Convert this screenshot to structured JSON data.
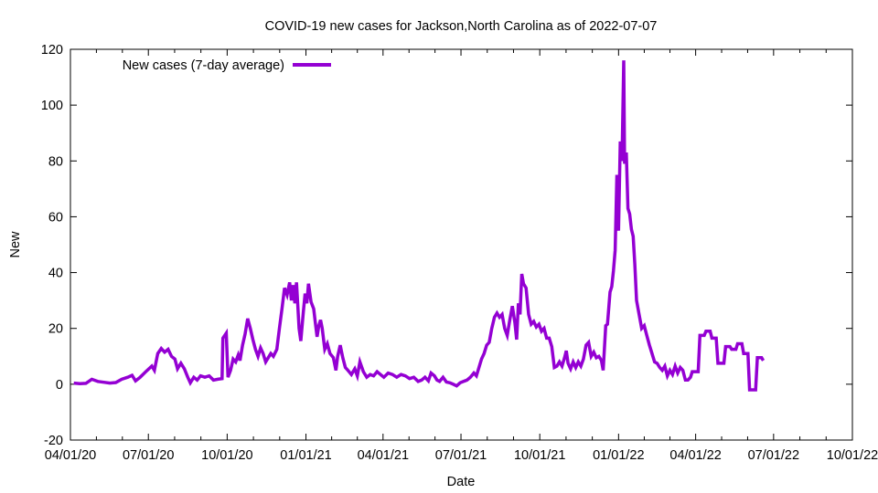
{
  "chart_data": {
    "type": "line",
    "title": "COVID-19 new cases for Jackson,North Carolina as of 2022-07-07",
    "xlabel": "Date",
    "ylabel": "New",
    "xlim": [
      "2020-04-01",
      "2022-10-01"
    ],
    "ylim": [
      -20,
      120
    ],
    "x_ticks": [
      {
        "date": "2020-04-01",
        "label": "04/01/20"
      },
      {
        "date": "2020-07-01",
        "label": "07/01/20"
      },
      {
        "date": "2020-10-01",
        "label": "10/01/20"
      },
      {
        "date": "2021-01-01",
        "label": "01/01/21"
      },
      {
        "date": "2021-04-01",
        "label": "04/01/21"
      },
      {
        "date": "2021-07-01",
        "label": "07/01/21"
      },
      {
        "date": "2021-10-01",
        "label": "10/01/21"
      },
      {
        "date": "2022-01-01",
        "label": "01/01/22"
      },
      {
        "date": "2022-04-01",
        "label": "04/01/22"
      },
      {
        "date": "2022-07-01",
        "label": "07/01/22"
      },
      {
        "date": "2022-10-01",
        "label": "10/01/22"
      }
    ],
    "y_ticks": [
      -20,
      0,
      20,
      40,
      60,
      80,
      100,
      120
    ],
    "grid": false,
    "legend": {
      "position": "top-left"
    },
    "line_color": "#9400d3",
    "series": [
      {
        "name": "New cases (7-day average)",
        "color": "#9400d3",
        "points": [
          [
            "2020-04-05",
            0.4
          ],
          [
            "2020-04-12",
            0.2
          ],
          [
            "2020-04-19",
            0.3
          ],
          [
            "2020-04-26",
            1.8
          ],
          [
            "2020-05-03",
            1.0
          ],
          [
            "2020-05-10",
            0.7
          ],
          [
            "2020-05-17",
            0.4
          ],
          [
            "2020-05-24",
            0.6
          ],
          [
            "2020-05-31",
            1.8
          ],
          [
            "2020-06-07",
            2.5
          ],
          [
            "2020-06-12",
            3.2
          ],
          [
            "2020-06-16",
            1.2
          ],
          [
            "2020-06-21",
            2.4
          ],
          [
            "2020-06-28",
            4.5
          ],
          [
            "2020-07-05",
            6.5
          ],
          [
            "2020-07-08",
            5.0
          ],
          [
            "2020-07-12",
            11.0
          ],
          [
            "2020-07-16",
            12.8
          ],
          [
            "2020-07-20",
            11.5
          ],
          [
            "2020-07-24",
            12.5
          ],
          [
            "2020-07-28",
            10.0
          ],
          [
            "2020-08-01",
            9.0
          ],
          [
            "2020-08-04",
            5.5
          ],
          [
            "2020-08-08",
            7.5
          ],
          [
            "2020-08-12",
            5.5
          ],
          [
            "2020-08-16",
            2.5
          ],
          [
            "2020-08-19",
            0.5
          ],
          [
            "2020-08-23",
            2.5
          ],
          [
            "2020-08-27",
            1.5
          ],
          [
            "2020-08-31",
            3.0
          ],
          [
            "2020-09-05",
            2.5
          ],
          [
            "2020-09-10",
            3.0
          ],
          [
            "2020-09-15",
            1.5
          ],
          [
            "2020-09-20",
            1.8
          ],
          [
            "2020-09-25",
            2.0
          ],
          [
            "2020-09-26",
            16.5
          ],
          [
            "2020-09-30",
            18.3
          ],
          [
            "2020-10-02",
            2.5
          ],
          [
            "2020-10-05",
            5.0
          ],
          [
            "2020-10-08",
            9.0
          ],
          [
            "2020-10-11",
            8.0
          ],
          [
            "2020-10-14",
            10.5
          ],
          [
            "2020-10-16",
            8.5
          ],
          [
            "2020-10-19",
            14.0
          ],
          [
            "2020-10-22",
            18.0
          ],
          [
            "2020-10-25",
            23.5
          ],
          [
            "2020-10-28",
            20.0
          ],
          [
            "2020-10-31",
            16.0
          ],
          [
            "2020-11-03",
            12.5
          ],
          [
            "2020-11-06",
            10.0
          ],
          [
            "2020-11-09",
            13.0
          ],
          [
            "2020-11-12",
            11.0
          ],
          [
            "2020-11-15",
            8.0
          ],
          [
            "2020-11-18",
            9.5
          ],
          [
            "2020-11-21",
            11.0
          ],
          [
            "2020-11-24",
            10.0
          ],
          [
            "2020-11-28",
            12.5
          ],
          [
            "2020-12-01",
            20.0
          ],
          [
            "2020-12-04",
            27.0
          ],
          [
            "2020-12-07",
            34.5
          ],
          [
            "2020-12-10",
            32.0
          ],
          [
            "2020-12-13",
            36.5
          ],
          [
            "2020-12-15",
            30.0
          ],
          [
            "2020-12-17",
            35.5
          ],
          [
            "2020-12-19",
            29.0
          ],
          [
            "2020-12-21",
            36.5
          ],
          [
            "2020-12-24",
            20.0
          ],
          [
            "2020-12-26",
            15.5
          ],
          [
            "2020-12-29",
            26.0
          ],
          [
            "2020-12-31",
            32.5
          ],
          [
            "2021-01-02",
            29.0
          ],
          [
            "2021-01-04",
            36.0
          ],
          [
            "2021-01-07",
            29.5
          ],
          [
            "2021-01-10",
            27.0
          ],
          [
            "2021-01-12",
            22.0
          ],
          [
            "2021-01-14",
            17.0
          ],
          [
            "2021-01-16",
            21.0
          ],
          [
            "2021-01-18",
            23.0
          ],
          [
            "2021-01-20",
            20.0
          ],
          [
            "2021-01-23",
            12.5
          ],
          [
            "2021-01-26",
            14.5
          ],
          [
            "2021-01-29",
            11.0
          ],
          [
            "2021-02-02",
            9.5
          ],
          [
            "2021-02-05",
            5.0
          ],
          [
            "2021-02-07",
            10.0
          ],
          [
            "2021-02-10",
            14.0
          ],
          [
            "2021-02-13",
            9.5
          ],
          [
            "2021-02-16",
            6.0
          ],
          [
            "2021-02-19",
            5.0
          ],
          [
            "2021-02-23",
            3.5
          ],
          [
            "2021-02-27",
            5.5
          ],
          [
            "2021-03-02",
            3.0
          ],
          [
            "2021-03-05",
            8.0
          ],
          [
            "2021-03-09",
            4.5
          ],
          [
            "2021-03-13",
            2.5
          ],
          [
            "2021-03-17",
            3.5
          ],
          [
            "2021-03-21",
            3.0
          ],
          [
            "2021-03-25",
            4.5
          ],
          [
            "2021-03-29",
            3.5
          ],
          [
            "2021-04-02",
            2.5
          ],
          [
            "2021-04-07",
            4.0
          ],
          [
            "2021-04-12",
            3.5
          ],
          [
            "2021-04-17",
            2.5
          ],
          [
            "2021-04-22",
            3.5
          ],
          [
            "2021-04-27",
            3.0
          ],
          [
            "2021-05-02",
            2.0
          ],
          [
            "2021-05-07",
            2.5
          ],
          [
            "2021-05-12",
            1.0
          ],
          [
            "2021-05-16",
            1.5
          ],
          [
            "2021-05-20",
            2.5
          ],
          [
            "2021-05-24",
            1.2
          ],
          [
            "2021-05-27",
            4.0
          ],
          [
            "2021-05-31",
            3.0
          ],
          [
            "2021-06-03",
            1.5
          ],
          [
            "2021-06-06",
            1.0
          ],
          [
            "2021-06-10",
            2.5
          ],
          [
            "2021-06-14",
            0.8
          ],
          [
            "2021-06-18",
            0.5
          ],
          [
            "2021-06-22",
            0.0
          ],
          [
            "2021-06-26",
            -0.6
          ],
          [
            "2021-06-30",
            0.5
          ],
          [
            "2021-07-04",
            1.0
          ],
          [
            "2021-07-08",
            1.5
          ],
          [
            "2021-07-12",
            2.5
          ],
          [
            "2021-07-16",
            4.0
          ],
          [
            "2021-07-19",
            3.0
          ],
          [
            "2021-07-22",
            6.0
          ],
          [
            "2021-07-25",
            9.0
          ],
          [
            "2021-07-28",
            11.0
          ],
          [
            "2021-07-31",
            14.0
          ],
          [
            "2021-08-03",
            15.0
          ],
          [
            "2021-08-06",
            20.0
          ],
          [
            "2021-08-09",
            24.0
          ],
          [
            "2021-08-12",
            25.5
          ],
          [
            "2021-08-15",
            24.0
          ],
          [
            "2021-08-18",
            25.0
          ],
          [
            "2021-08-21",
            20.0
          ],
          [
            "2021-08-24",
            17.5
          ],
          [
            "2021-08-27",
            23.0
          ],
          [
            "2021-08-30",
            28.0
          ],
          [
            "2021-09-02",
            22.0
          ],
          [
            "2021-09-04",
            16.0
          ],
          [
            "2021-09-06",
            29.0
          ],
          [
            "2021-09-08",
            25.0
          ],
          [
            "2021-09-10",
            39.5
          ],
          [
            "2021-09-12",
            36.0
          ],
          [
            "2021-09-15",
            34.5
          ],
          [
            "2021-09-18",
            25.0
          ],
          [
            "2021-09-21",
            21.5
          ],
          [
            "2021-09-24",
            22.5
          ],
          [
            "2021-09-27",
            20.5
          ],
          [
            "2021-09-30",
            21.5
          ],
          [
            "2021-10-03",
            19.0
          ],
          [
            "2021-10-06",
            20.0
          ],
          [
            "2021-10-09",
            16.5
          ],
          [
            "2021-10-12",
            16.5
          ],
          [
            "2021-10-15",
            13.5
          ],
          [
            "2021-10-18",
            6.0
          ],
          [
            "2021-10-21",
            6.5
          ],
          [
            "2021-10-24",
            8.0
          ],
          [
            "2021-10-27",
            6.5
          ],
          [
            "2021-10-30",
            9.5
          ],
          [
            "2021-11-01",
            12.0
          ],
          [
            "2021-11-03",
            7.5
          ],
          [
            "2021-11-06",
            5.5
          ],
          [
            "2021-11-09",
            8.0
          ],
          [
            "2021-11-12",
            6.0
          ],
          [
            "2021-11-15",
            8.0
          ],
          [
            "2021-11-18",
            6.5
          ],
          [
            "2021-11-21",
            9.0
          ],
          [
            "2021-11-24",
            14.0
          ],
          [
            "2021-11-27",
            15.0
          ],
          [
            "2021-11-30",
            10.0
          ],
          [
            "2021-12-03",
            11.5
          ],
          [
            "2021-12-06",
            9.5
          ],
          [
            "2021-12-09",
            10.0
          ],
          [
            "2021-12-12",
            8.5
          ],
          [
            "2021-12-14",
            5.0
          ],
          [
            "2021-12-17",
            21.0
          ],
          [
            "2021-12-19",
            21.5
          ],
          [
            "2021-12-22",
            33.0
          ],
          [
            "2021-12-24",
            35.0
          ],
          [
            "2021-12-26",
            40.5
          ],
          [
            "2021-12-28",
            48.0
          ],
          [
            "2021-12-30",
            75.0
          ],
          [
            "2022-01-01",
            55.0
          ],
          [
            "2022-01-03",
            87.0
          ],
          [
            "2022-01-05",
            80.0
          ],
          [
            "2022-01-07",
            116.0
          ],
          [
            "2022-01-08",
            79.0
          ],
          [
            "2022-01-10",
            83.0
          ],
          [
            "2022-01-12",
            63.0
          ],
          [
            "2022-01-14",
            61.0
          ],
          [
            "2022-01-16",
            55.5
          ],
          [
            "2022-01-18",
            53.0
          ],
          [
            "2022-01-20",
            43.0
          ],
          [
            "2022-01-22",
            30.0
          ],
          [
            "2022-01-25",
            25.0
          ],
          [
            "2022-01-28",
            20.0
          ],
          [
            "2022-01-31",
            21.0
          ],
          [
            "2022-02-03",
            17.5
          ],
          [
            "2022-02-06",
            14.0
          ],
          [
            "2022-02-09",
            11.0
          ],
          [
            "2022-02-12",
            8.0
          ],
          [
            "2022-02-15",
            7.5
          ],
          [
            "2022-02-18",
            6.0
          ],
          [
            "2022-02-21",
            5.0
          ],
          [
            "2022-02-24",
            6.5
          ],
          [
            "2022-02-27",
            3.0
          ],
          [
            "2022-03-02",
            5.0
          ],
          [
            "2022-03-05",
            3.5
          ],
          [
            "2022-03-08",
            6.5
          ],
          [
            "2022-03-11",
            4.0
          ],
          [
            "2022-03-14",
            6.0
          ],
          [
            "2022-03-17",
            5.0
          ],
          [
            "2022-03-20",
            1.5
          ],
          [
            "2022-03-23",
            1.5
          ],
          [
            "2022-03-26",
            2.5
          ],
          [
            "2022-03-28",
            4.5
          ],
          [
            "2022-04-01",
            4.5
          ],
          [
            "2022-04-04",
            4.5
          ],
          [
            "2022-04-06",
            17.5
          ],
          [
            "2022-04-11",
            17.5
          ],
          [
            "2022-04-13",
            19.0
          ],
          [
            "2022-04-18",
            19.0
          ],
          [
            "2022-04-20",
            16.5
          ],
          [
            "2022-04-25",
            16.5
          ],
          [
            "2022-04-27",
            7.5
          ],
          [
            "2022-05-04",
            7.5
          ],
          [
            "2022-05-06",
            13.5
          ],
          [
            "2022-05-11",
            13.5
          ],
          [
            "2022-05-13",
            12.5
          ],
          [
            "2022-05-18",
            12.5
          ],
          [
            "2022-05-20",
            14.5
          ],
          [
            "2022-05-25",
            14.5
          ],
          [
            "2022-05-27",
            11.0
          ],
          [
            "2022-06-01",
            11.0
          ],
          [
            "2022-06-03",
            -2.0
          ],
          [
            "2022-06-10",
            -2.0
          ],
          [
            "2022-06-12",
            9.5
          ],
          [
            "2022-06-17",
            9.5
          ],
          [
            "2022-06-19",
            8.5
          ]
        ]
      }
    ]
  }
}
